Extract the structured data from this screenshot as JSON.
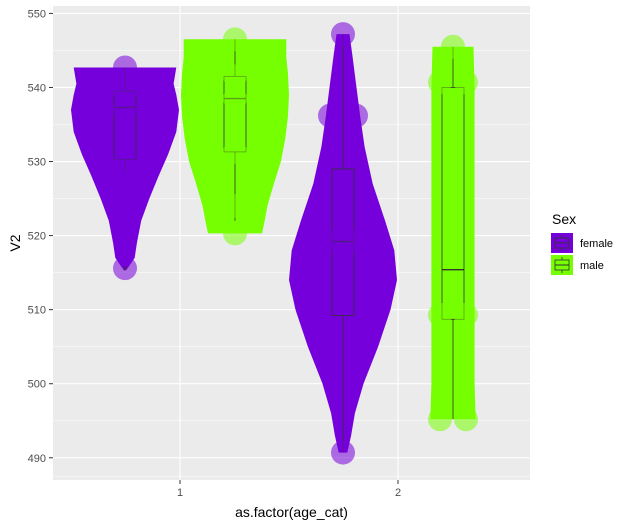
{
  "chart_data": {
    "type": "violin",
    "xlabel": "as.factor(age_cat)",
    "ylabel": "V2",
    "categories": [
      "1",
      "2"
    ],
    "ylim": [
      487,
      551
    ],
    "yticks": [
      490,
      500,
      510,
      520,
      530,
      540,
      550
    ],
    "grid": true,
    "legend": {
      "title": "Sex",
      "placement": "right",
      "entries": [
        "female",
        "male"
      ]
    },
    "colors": {
      "female": "#7600DB",
      "male": "#76FF00",
      "panel": "#EBEBEB",
      "grid": "#FFFFFF"
    },
    "series": [
      {
        "name": "female",
        "category": "1",
        "points": [
          542.7,
          515.6,
          539.5,
          537.0,
          530.0
        ],
        "violin": [
          [
            515.6,
            0.05
          ],
          [
            517,
            0.18
          ],
          [
            519,
            0.22
          ],
          [
            522,
            0.3
          ],
          [
            525,
            0.45
          ],
          [
            528,
            0.62
          ],
          [
            531,
            0.8
          ],
          [
            534,
            0.95
          ],
          [
            537,
            1.0
          ],
          [
            539,
            0.95
          ],
          [
            540.5,
            0.9
          ],
          [
            542.7,
            0.95
          ]
        ],
        "box": {
          "lower": 528.5,
          "q1": 530.3,
          "median": 537.3,
          "q3": 539.5,
          "upper": 542.7
        },
        "outliers": [
          515.6
        ]
      },
      {
        "name": "male",
        "category": "1",
        "points": [
          546.5,
          520.3,
          541.5,
          538.5,
          531.3,
          524.0
        ],
        "violin": [
          [
            520.3,
            0.5
          ],
          [
            522,
            0.55
          ],
          [
            524,
            0.6
          ],
          [
            527,
            0.72
          ],
          [
            530,
            0.85
          ],
          [
            533,
            0.93
          ],
          [
            536,
            0.98
          ],
          [
            539,
            1.0
          ],
          [
            542,
            0.98
          ],
          [
            544,
            0.95
          ],
          [
            546.5,
            0.95
          ]
        ],
        "box": {
          "lower": 522.0,
          "q1": 531.3,
          "median": 538.5,
          "q3": 541.5,
          "upper": 546.5
        },
        "outliers": []
      },
      {
        "name": "female",
        "category": "2",
        "points": [
          547.2,
          536.2,
          536.2,
          519.2,
          519.2,
          490.7
        ],
        "violin": [
          [
            490.7,
            0.08
          ],
          [
            493,
            0.15
          ],
          [
            496,
            0.22
          ],
          [
            500,
            0.38
          ],
          [
            505,
            0.65
          ],
          [
            510,
            0.88
          ],
          [
            514,
            1.0
          ],
          [
            518,
            0.95
          ],
          [
            522,
            0.78
          ],
          [
            527,
            0.55
          ],
          [
            532,
            0.4
          ],
          [
            536,
            0.32
          ],
          [
            540,
            0.25
          ],
          [
            544,
            0.18
          ],
          [
            547.2,
            0.12
          ]
        ],
        "box": {
          "lower": 490.7,
          "q1": 509.2,
          "median": 519.2,
          "q3": 529.0,
          "upper": 547.2
        },
        "outliers": []
      },
      {
        "name": "male",
        "category": "2",
        "points": [
          545.5,
          540.7,
          540.7,
          509.3,
          509.3,
          495.2,
          495.2
        ],
        "violin": [
          [
            495.2,
            0.42
          ],
          [
            500,
            0.4
          ],
          [
            505,
            0.4
          ],
          [
            510,
            0.4
          ],
          [
            515,
            0.4
          ],
          [
            520,
            0.4
          ],
          [
            525,
            0.4
          ],
          [
            530,
            0.4
          ],
          [
            535,
            0.4
          ],
          [
            540,
            0.4
          ],
          [
            545.5,
            0.38
          ]
        ],
        "box": {
          "lower": 495.2,
          "q1": 508.7,
          "median": 515.4,
          "q3": 540.0,
          "upper": 545.5
        },
        "outliers": []
      }
    ]
  }
}
